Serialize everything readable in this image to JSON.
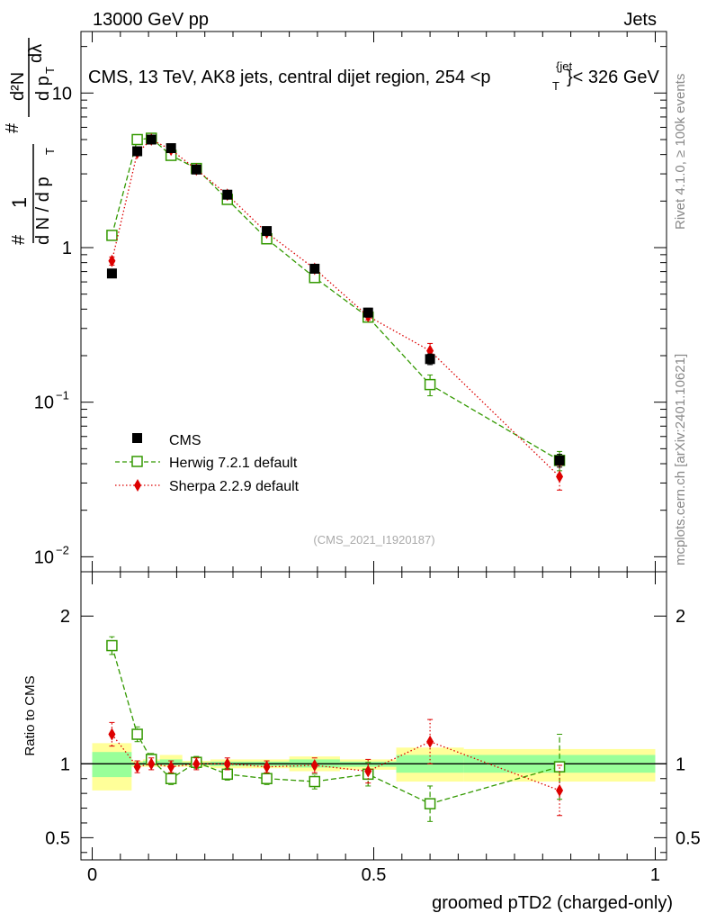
{
  "header": {
    "left": "13000 GeV pp",
    "right": "Jets"
  },
  "side_labels": {
    "rivet": "Rivet 4.1.0, ≥ 100k events",
    "mcplots": "mcplots.cern.ch [arXiv:2401.10621]"
  },
  "chart_data": [
    {
      "type": "line",
      "panel": "main",
      "title": "CMS, 13 TeV, AK8 jets, central dijet region, 254 < p_T^{jet} < 326 GeV",
      "title_text": "CMS, 13 TeV, AK8 jets, central dijet region, 254 <p",
      "title_sub": "T",
      "title_sup": "{jet",
      "title_tail": "}< 326 GeV",
      "ylabel": "1/(dN/dpT) d²N/(dpT dλ)",
      "ylabel_parts": {
        "hash": "#",
        "frac1_num": "1",
        "frac1_den": "d N / d p",
        "frac2_hash": "#",
        "frac2_num": "d²N",
        "frac2_den": "d p",
        "frac2_den_tail": " dλ",
        "sub_T": "T"
      },
      "yscale": "log",
      "ylim": [
        0.008,
        25
      ],
      "xlim": [
        -0.02,
        1.02
      ],
      "yticks": [
        {
          "value": 0.01,
          "base": "10",
          "exp": "−2"
        },
        {
          "value": 0.1,
          "base": "10",
          "exp": "−1"
        },
        {
          "value": 1,
          "base": "1",
          "exp": ""
        },
        {
          "value": 10,
          "base": "10",
          "exp": ""
        }
      ],
      "watermark": "(CMS_2021_I1920187)",
      "legend_position": "lower-left",
      "series": [
        {
          "name": "CMS",
          "style": "data",
          "color": "#000000",
          "x": [
            0.035,
            0.08,
            0.105,
            0.14,
            0.185,
            0.24,
            0.31,
            0.395,
            0.49,
            0.6,
            0.83
          ],
          "y": [
            0.68,
            4.2,
            5.0,
            4.4,
            3.2,
            2.2,
            1.28,
            0.73,
            0.38,
            0.19,
            0.042
          ],
          "err": [
            0.03,
            0.2,
            0.2,
            0.18,
            0.13,
            0.09,
            0.06,
            0.04,
            0.025,
            0.015,
            0.004
          ]
        },
        {
          "name": "Herwig 7.2.1 default",
          "style": "open-square-dashed",
          "color": "#339900",
          "x": [
            0.035,
            0.08,
            0.105,
            0.14,
            0.185,
            0.24,
            0.31,
            0.395,
            0.49,
            0.6,
            0.83
          ],
          "y": [
            1.2,
            5.0,
            5.1,
            3.95,
            3.25,
            2.05,
            1.14,
            0.64,
            0.355,
            0.13,
            0.042
          ],
          "err": [
            0.05,
            0.15,
            0.15,
            0.12,
            0.1,
            0.07,
            0.05,
            0.03,
            0.02,
            0.02,
            0.006
          ]
        },
        {
          "name": "Sherpa 2.2.9 default",
          "style": "filled-diamond-dotted",
          "color": "#dd0000",
          "x": [
            0.035,
            0.08,
            0.105,
            0.14,
            0.185,
            0.24,
            0.31,
            0.395,
            0.49,
            0.6,
            0.83
          ],
          "y": [
            0.82,
            4.1,
            5.0,
            4.3,
            3.2,
            2.2,
            1.25,
            0.73,
            0.36,
            0.215,
            0.033
          ],
          "err": [
            0.05,
            0.15,
            0.15,
            0.12,
            0.1,
            0.07,
            0.05,
            0.03,
            0.02,
            0.025,
            0.006
          ]
        }
      ]
    },
    {
      "type": "line",
      "panel": "ratio",
      "ylabel": "Ratio to CMS",
      "xlabel": "groomed pTD2 (charged-only)",
      "xlim": [
        -0.02,
        1.02
      ],
      "ylim": [
        0.35,
        2.3
      ],
      "yticks": [
        0.5,
        1,
        2
      ],
      "ytick_labels": [
        "0.5",
        "1",
        "2"
      ],
      "xticks": [
        0,
        0.5,
        1
      ],
      "xtick_labels": [
        "0",
        "0.5",
        "1"
      ],
      "bands": [
        {
          "x0": 0.0,
          "x1": 0.07,
          "y_lo": 0.82,
          "y_hi": 1.14,
          "g_lo": 0.91,
          "g_hi": 1.08
        },
        {
          "x0": 0.07,
          "x1": 0.09,
          "y_lo": 0.98,
          "y_hi": 1.02,
          "g_lo": 0.99,
          "g_hi": 1.01
        },
        {
          "x0": 0.09,
          "x1": 0.12,
          "y_lo": 0.98,
          "y_hi": 1.03,
          "g_lo": 0.99,
          "g_hi": 1.02
        },
        {
          "x0": 0.12,
          "x1": 0.16,
          "y_lo": 0.98,
          "y_hi": 1.06,
          "g_lo": 0.99,
          "g_hi": 1.03
        },
        {
          "x0": 0.16,
          "x1": 0.21,
          "y_lo": 0.98,
          "y_hi": 1.02,
          "g_lo": 0.99,
          "g_hi": 1.01
        },
        {
          "x0": 0.21,
          "x1": 0.27,
          "y_lo": 0.97,
          "y_hi": 1.03,
          "g_lo": 0.985,
          "g_hi": 1.015
        },
        {
          "x0": 0.27,
          "x1": 0.35,
          "y_lo": 0.97,
          "y_hi": 1.03,
          "g_lo": 0.985,
          "g_hi": 1.015
        },
        {
          "x0": 0.35,
          "x1": 0.44,
          "y_lo": 0.95,
          "y_hi": 1.05,
          "g_lo": 0.975,
          "g_hi": 1.03
        },
        {
          "x0": 0.44,
          "x1": 0.54,
          "y_lo": 0.96,
          "y_hi": 1.03,
          "g_lo": 0.98,
          "g_hi": 1.015
        },
        {
          "x0": 0.54,
          "x1": 0.66,
          "y_lo": 0.88,
          "y_hi": 1.11,
          "g_lo": 0.94,
          "g_hi": 1.06
        },
        {
          "x0": 0.66,
          "x1": 1.0,
          "y_lo": 0.88,
          "y_hi": 1.1,
          "g_lo": 0.94,
          "g_hi": 1.06
        }
      ],
      "series": [
        {
          "name": "Herwig 7.2.1 default",
          "style": "open-square-dashed",
          "color": "#339900",
          "x": [
            0.035,
            0.08,
            0.105,
            0.14,
            0.185,
            0.24,
            0.31,
            0.395,
            0.49,
            0.6,
            0.83
          ],
          "y": [
            1.8,
            1.2,
            1.03,
            0.9,
            1.01,
            0.93,
            0.9,
            0.88,
            0.93,
            0.73,
            0.98
          ],
          "err": [
            0.06,
            0.05,
            0.04,
            0.04,
            0.04,
            0.04,
            0.04,
            0.05,
            0.08,
            0.12,
            0.22
          ]
        },
        {
          "name": "Sherpa 2.2.9 default",
          "style": "filled-diamond-dotted",
          "color": "#dd0000",
          "x": [
            0.035,
            0.08,
            0.105,
            0.14,
            0.185,
            0.24,
            0.31,
            0.395,
            0.49,
            0.6,
            0.83
          ],
          "y": [
            1.2,
            0.98,
            1.0,
            0.98,
            1.0,
            1.0,
            0.98,
            0.99,
            0.95,
            1.15,
            0.82
          ],
          "err": [
            0.08,
            0.04,
            0.04,
            0.04,
            0.04,
            0.04,
            0.04,
            0.05,
            0.08,
            0.15,
            0.17
          ]
        }
      ]
    }
  ]
}
